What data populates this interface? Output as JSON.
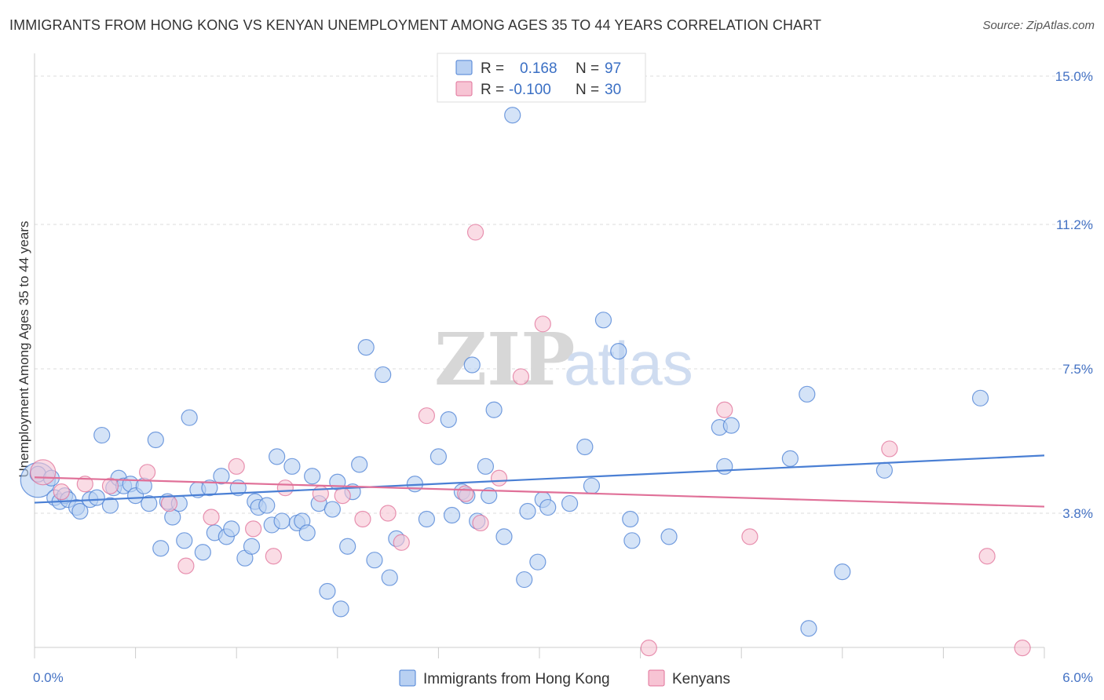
{
  "title": "IMMIGRANTS FROM HONG KONG VS KENYAN UNEMPLOYMENT AMONG AGES 35 TO 44 YEARS CORRELATION CHART",
  "source": "Source: ZipAtlas.com",
  "watermark": {
    "zip": "ZIP",
    "atlas": "atlas"
  },
  "colors": {
    "blue": "#4a7fd4",
    "blue_fill": "#b8d0f2",
    "pink": "#e07098",
    "pink_fill": "#f7c4d4"
  },
  "legend": {
    "rows": [
      {
        "r_label": "R =",
        "r_value": "0.168",
        "n_label": "N =",
        "n_value": "97"
      },
      {
        "r_label": "R =",
        "r_value": "-0.100",
        "n_label": "N =",
        "n_value": "30"
      }
    ]
  },
  "bottom_legend": [
    "Immigrants from Hong Kong",
    "Kenyans"
  ],
  "chart_data": {
    "type": "scatter",
    "title": "IMMIGRANTS FROM HONG KONG VS KENYAN UNEMPLOYMENT AMONG AGES 35 TO 44 YEARS CORRELATION CHART",
    "xlabel": "",
    "ylabel": "Unemployment Among Ages 35 to 44 years",
    "xlim": [
      0,
      6.0
    ],
    "ylim": [
      0,
      15.0
    ],
    "x_ticks": [
      "0.0%",
      "6.0%"
    ],
    "y_ticks": [
      {
        "value": 3.8,
        "label": "3.8%"
      },
      {
        "value": 7.5,
        "label": "7.5%"
      },
      {
        "value": 11.2,
        "label": "11.2%"
      },
      {
        "value": 15.0,
        "label": "15.0%"
      }
    ],
    "grid": true,
    "legend_position": "top-center",
    "series": [
      {
        "name": "Immigrants from Hong Kong",
        "r": 0.168,
        "n": 97,
        "trend": [
          [
            0,
            4.07
          ],
          [
            6.0,
            5.28
          ]
        ],
        "points": [
          [
            0.02,
            4.65,
            22
          ],
          [
            0.02,
            4.8,
            10
          ],
          [
            0.1,
            4.7,
            10
          ],
          [
            0.12,
            4.2,
            10
          ],
          [
            0.15,
            4.1,
            10
          ],
          [
            0.18,
            4.25,
            10
          ],
          [
            0.2,
            4.15,
            10
          ],
          [
            0.25,
            3.95,
            10
          ],
          [
            0.27,
            3.85,
            10
          ],
          [
            0.33,
            4.15,
            10
          ],
          [
            0.37,
            4.2,
            10
          ],
          [
            0.4,
            5.8,
            10
          ],
          [
            0.45,
            4.0,
            10
          ],
          [
            0.47,
            4.45,
            10
          ],
          [
            0.5,
            4.7,
            10
          ],
          [
            0.53,
            4.5,
            10
          ],
          [
            0.57,
            4.55,
            10
          ],
          [
            0.6,
            4.25,
            10
          ],
          [
            0.65,
            4.5,
            10
          ],
          [
            0.68,
            4.05,
            10
          ],
          [
            0.72,
            5.68,
            10
          ],
          [
            0.75,
            2.9,
            10
          ],
          [
            0.79,
            4.1,
            10
          ],
          [
            0.82,
            3.7,
            10
          ],
          [
            0.86,
            4.05,
            10
          ],
          [
            0.89,
            3.1,
            10
          ],
          [
            0.92,
            6.25,
            10
          ],
          [
            0.97,
            4.4,
            10
          ],
          [
            1.0,
            2.8,
            10
          ],
          [
            1.04,
            4.45,
            10
          ],
          [
            1.07,
            3.3,
            10
          ],
          [
            1.11,
            4.75,
            10
          ],
          [
            1.14,
            3.2,
            10
          ],
          [
            1.17,
            3.4,
            10
          ],
          [
            1.21,
            4.45,
            10
          ],
          [
            1.25,
            2.65,
            10
          ],
          [
            1.29,
            2.95,
            10
          ],
          [
            1.31,
            4.1,
            10
          ],
          [
            1.33,
            3.95,
            10
          ],
          [
            1.38,
            4.0,
            10
          ],
          [
            1.41,
            3.5,
            10
          ],
          [
            1.44,
            5.25,
            10
          ],
          [
            1.47,
            3.6,
            10
          ],
          [
            1.53,
            5.0,
            10
          ],
          [
            1.56,
            3.55,
            10
          ],
          [
            1.59,
            3.6,
            10
          ],
          [
            1.62,
            3.3,
            10
          ],
          [
            1.65,
            4.75,
            10
          ],
          [
            1.69,
            4.05,
            10
          ],
          [
            1.74,
            1.8,
            10
          ],
          [
            1.77,
            3.9,
            10
          ],
          [
            1.8,
            4.6,
            10
          ],
          [
            1.82,
            1.35,
            10
          ],
          [
            1.86,
            2.95,
            10
          ],
          [
            1.89,
            4.35,
            10
          ],
          [
            1.93,
            5.05,
            10
          ],
          [
            1.97,
            8.05,
            10
          ],
          [
            2.02,
            2.6,
            10
          ],
          [
            2.07,
            7.35,
            10
          ],
          [
            2.11,
            2.15,
            10
          ],
          [
            2.15,
            3.15,
            10
          ],
          [
            2.26,
            4.55,
            10
          ],
          [
            2.33,
            3.65,
            10
          ],
          [
            2.4,
            5.25,
            10
          ],
          [
            2.46,
            6.2,
            10
          ],
          [
            2.48,
            3.75,
            10
          ],
          [
            2.54,
            4.35,
            10
          ],
          [
            2.57,
            4.25,
            10
          ],
          [
            2.6,
            7.6,
            10
          ],
          [
            2.63,
            3.6,
            10
          ],
          [
            2.68,
            5.0,
            10
          ],
          [
            2.7,
            4.25,
            10
          ],
          [
            2.73,
            6.45,
            10
          ],
          [
            2.79,
            3.2,
            10
          ],
          [
            2.84,
            14.0,
            10
          ],
          [
            2.93,
            3.85,
            10
          ],
          [
            2.99,
            2.55,
            10
          ],
          [
            2.91,
            2.1,
            10
          ],
          [
            3.02,
            4.15,
            10
          ],
          [
            3.05,
            3.95,
            10
          ],
          [
            3.18,
            4.05,
            10
          ],
          [
            3.27,
            5.5,
            10
          ],
          [
            3.31,
            4.5,
            10
          ],
          [
            3.38,
            8.75,
            10
          ],
          [
            3.47,
            7.95,
            10
          ],
          [
            3.54,
            3.65,
            10
          ],
          [
            3.55,
            3.1,
            10
          ],
          [
            3.77,
            3.2,
            10
          ],
          [
            4.07,
            6.0,
            10
          ],
          [
            4.14,
            6.05,
            10
          ],
          [
            4.1,
            5.0,
            10
          ],
          [
            4.49,
            5.2,
            10
          ],
          [
            4.6,
            0.85,
            10
          ],
          [
            4.59,
            6.85,
            10
          ],
          [
            4.8,
            2.3,
            10
          ],
          [
            5.05,
            4.9,
            10
          ],
          [
            5.62,
            6.75,
            10
          ]
        ]
      },
      {
        "name": "Kenyans",
        "r": -0.1,
        "n": 30,
        "trend": [
          [
            0,
            4.72
          ],
          [
            6.0,
            3.97
          ]
        ],
        "points": [
          [
            0.05,
            4.85,
            16
          ],
          [
            0.16,
            4.35,
            10
          ],
          [
            0.3,
            4.55,
            10
          ],
          [
            0.45,
            4.5,
            10
          ],
          [
            0.67,
            4.85,
            10
          ],
          [
            0.8,
            4.05,
            10
          ],
          [
            0.9,
            2.45,
            10
          ],
          [
            1.05,
            3.7,
            10
          ],
          [
            1.2,
            5.0,
            10
          ],
          [
            1.3,
            3.4,
            10
          ],
          [
            1.42,
            2.7,
            10
          ],
          [
            1.49,
            4.45,
            10
          ],
          [
            1.7,
            4.3,
            10
          ],
          [
            1.83,
            4.25,
            10
          ],
          [
            1.95,
            3.65,
            10
          ],
          [
            2.1,
            3.8,
            10
          ],
          [
            2.18,
            3.05,
            10
          ],
          [
            2.33,
            6.3,
            10
          ],
          [
            2.56,
            4.3,
            10
          ],
          [
            2.62,
            11.0,
            10
          ],
          [
            2.65,
            3.55,
            10
          ],
          [
            2.76,
            4.7,
            10
          ],
          [
            2.89,
            7.3,
            10
          ],
          [
            3.02,
            8.65,
            10
          ],
          [
            3.65,
            0.35,
            10
          ],
          [
            4.1,
            6.45,
            10
          ],
          [
            4.25,
            3.2,
            10
          ],
          [
            5.08,
            5.45,
            10
          ],
          [
            5.66,
            2.7,
            10
          ],
          [
            5.87,
            0.35,
            10
          ]
        ]
      }
    ]
  }
}
